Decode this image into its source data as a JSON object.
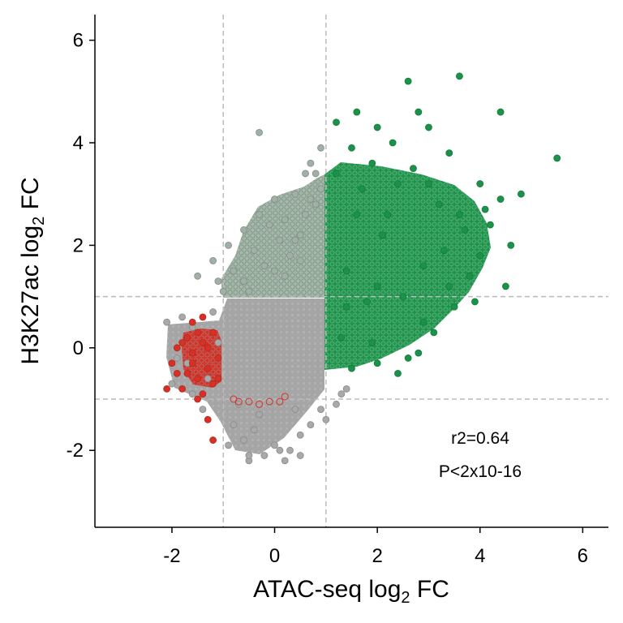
{
  "chart_data": {
    "type": "scatter",
    "xlabel": "ATAC-seq log₂ FC",
    "ylabel": "H3K27ac log₂ FC",
    "xlim": [
      -3.5,
      6.5
    ],
    "ylim": [
      -3.5,
      6.5
    ],
    "x_ticks": [
      "-2",
      "0",
      "2",
      "4",
      "6"
    ],
    "y_ticks": [
      "-2",
      "0",
      "2",
      "4",
      "6"
    ],
    "threshold_lines": {
      "x": [
        -1,
        1
      ],
      "y": [
        -1,
        1
      ],
      "style": "dashed",
      "color": "#bbbbbb"
    },
    "annotations": [
      "r2=0.64",
      "P<2x10-16"
    ],
    "grid": false,
    "legend": "none",
    "colors": {
      "up": "#1b9249",
      "mid": "#a9a9a9",
      "down": "#d73027",
      "edge_grey": "#7d8f83"
    },
    "series": [
      {
        "color": "#a9a9a9",
        "points": [
          [
            -2.1,
            0.5
          ],
          [
            -1.9,
            -0.2
          ],
          [
            -2.0,
            -0.7
          ],
          [
            -1.7,
            -0.3
          ],
          [
            -1.6,
            -0.9
          ],
          [
            -1.4,
            -1.2
          ],
          [
            -1.3,
            -0.6
          ],
          [
            -1.1,
            0.1
          ],
          [
            -1.2,
            0.7
          ],
          [
            -1.6,
            0.4
          ],
          [
            -1.8,
            0.6
          ],
          [
            -0.8,
            -1.5
          ],
          [
            -0.6,
            -1.8
          ],
          [
            -0.4,
            -1.6
          ],
          [
            -0.2,
            -2.1
          ],
          [
            0.0,
            -1.9
          ],
          [
            0.3,
            -2.0
          ],
          [
            0.5,
            -1.7
          ],
          [
            0.7,
            -1.5
          ],
          [
            -0.9,
            -1.9
          ],
          [
            -0.5,
            -2.2
          ],
          [
            0.2,
            -2.2
          ],
          [
            0.5,
            -2.1
          ],
          [
            0.9,
            -1.2
          ],
          [
            1.2,
            -1.1
          ],
          [
            1.4,
            -0.8
          ],
          [
            1.0,
            -1.4
          ],
          [
            -0.5,
            -2.1
          ],
          [
            0.1,
            -2.0
          ],
          [
            -0.3,
            -1.3
          ],
          [
            0.4,
            -1.2
          ],
          [
            -0.7,
            -1.1
          ],
          [
            1.3,
            -0.9
          ]
        ]
      },
      {
        "color": "#9db2a4",
        "points": [
          [
            -0.3,
            4.2
          ],
          [
            -1.2,
            1.7
          ],
          [
            -1.5,
            1.4
          ],
          [
            -0.9,
            2.0
          ],
          [
            -0.6,
            2.3
          ],
          [
            -0.3,
            2.6
          ],
          [
            0.0,
            2.9
          ],
          [
            0.2,
            2.5
          ],
          [
            0.4,
            3.0
          ],
          [
            0.6,
            3.4
          ],
          [
            0.7,
            3.6
          ],
          [
            0.9,
            3.9
          ],
          [
            0.5,
            2.2
          ],
          [
            -0.2,
            1.6
          ],
          [
            0.3,
            1.8
          ],
          [
            -0.6,
            1.3
          ],
          [
            -1.0,
            1.1
          ],
          [
            0.1,
            2.1
          ],
          [
            0.8,
            2.8
          ],
          [
            0.9,
            3.1
          ],
          [
            -0.8,
            1.5
          ],
          [
            0.6,
            2.6
          ],
          [
            -0.4,
            1.9
          ],
          [
            -0.1,
            2.4
          ],
          [
            0.4,
            2.1
          ],
          [
            0.7,
            2.9
          ],
          [
            0.2,
            1.4
          ],
          [
            -0.5,
            1.1
          ],
          [
            0.8,
            3.4
          ],
          [
            0.5,
            1.7
          ],
          [
            0.0,
            1.5
          ],
          [
            -1.1,
            1.3
          ]
        ]
      },
      {
        "color": "#1b9249",
        "points": [
          [
            1.2,
            4.4
          ],
          [
            1.6,
            4.6
          ],
          [
            2.0,
            4.3
          ],
          [
            2.6,
            5.2
          ],
          [
            3.6,
            5.3
          ],
          [
            4.4,
            4.6
          ],
          [
            2.8,
            4.6
          ],
          [
            5.5,
            3.7
          ],
          [
            4.8,
            3.0
          ],
          [
            4.6,
            2.0
          ],
          [
            4.2,
            2.4
          ],
          [
            3.8,
            1.4
          ],
          [
            4.5,
            1.2
          ],
          [
            3.4,
            3.8
          ],
          [
            3.0,
            4.3
          ],
          [
            1.5,
            3.9
          ],
          [
            1.9,
            3.6
          ],
          [
            2.4,
            3.2
          ],
          [
            2.2,
            2.6
          ],
          [
            3.2,
            2.8
          ],
          [
            3.6,
            2.6
          ],
          [
            4.0,
            3.2
          ],
          [
            4.4,
            2.9
          ],
          [
            1.3,
            0.2
          ],
          [
            1.5,
            -0.4
          ],
          [
            2.0,
            -0.3
          ],
          [
            2.4,
            -0.5
          ],
          [
            2.8,
            -0.1
          ],
          [
            3.1,
            0.3
          ],
          [
            3.5,
            0.8
          ],
          [
            3.9,
            0.9
          ],
          [
            1.8,
            0.9
          ],
          [
            2.6,
            -0.2
          ],
          [
            2.0,
            1.2
          ],
          [
            1.4,
            1.5
          ],
          [
            1.6,
            2.6
          ],
          [
            2.9,
            1.6
          ],
          [
            3.3,
            1.9
          ],
          [
            2.1,
            2.2
          ],
          [
            2.5,
            1.0
          ],
          [
            3.7,
            2.3
          ],
          [
            4.1,
            2.7
          ],
          [
            1.2,
            3.4
          ],
          [
            1.7,
            3.1
          ],
          [
            2.3,
            4.0
          ],
          [
            2.7,
            3.5
          ],
          [
            3.0,
            3.2
          ],
          [
            2.9,
            0.5
          ],
          [
            1.9,
            0.1
          ],
          [
            3.4,
            1.2
          ],
          [
            4.0,
            1.8
          ],
          [
            1.4,
            0.8
          ]
        ]
      },
      {
        "color": "#d73027",
        "points": [
          [
            -2.0,
            -0.3
          ],
          [
            -1.9,
            -0.5
          ],
          [
            -1.8,
            -0.8
          ],
          [
            -1.7,
            0.2
          ],
          [
            -1.6,
            -0.1
          ],
          [
            -1.5,
            -0.6
          ],
          [
            -1.4,
            0.1
          ],
          [
            -1.3,
            -0.4
          ],
          [
            -1.2,
            0.3
          ],
          [
            -1.3,
            -1.4
          ],
          [
            -1.2,
            -1.8
          ],
          [
            -1.6,
            0.5
          ],
          [
            -1.4,
            -0.9
          ],
          [
            -1.1,
            -0.2
          ],
          [
            -1.5,
            0.3
          ],
          [
            -1.8,
            0.1
          ],
          [
            -2.1,
            -0.8
          ],
          [
            -1.7,
            -0.5
          ],
          [
            -1.2,
            -0.7
          ],
          [
            -1.4,
            0.6
          ],
          [
            -1.9,
            0.0
          ],
          [
            -1.3,
            0.0
          ],
          [
            -1.6,
            -0.3
          ],
          [
            -1.1,
            -0.6
          ],
          [
            -1.5,
            -1.0
          ]
        ]
      }
    ]
  }
}
